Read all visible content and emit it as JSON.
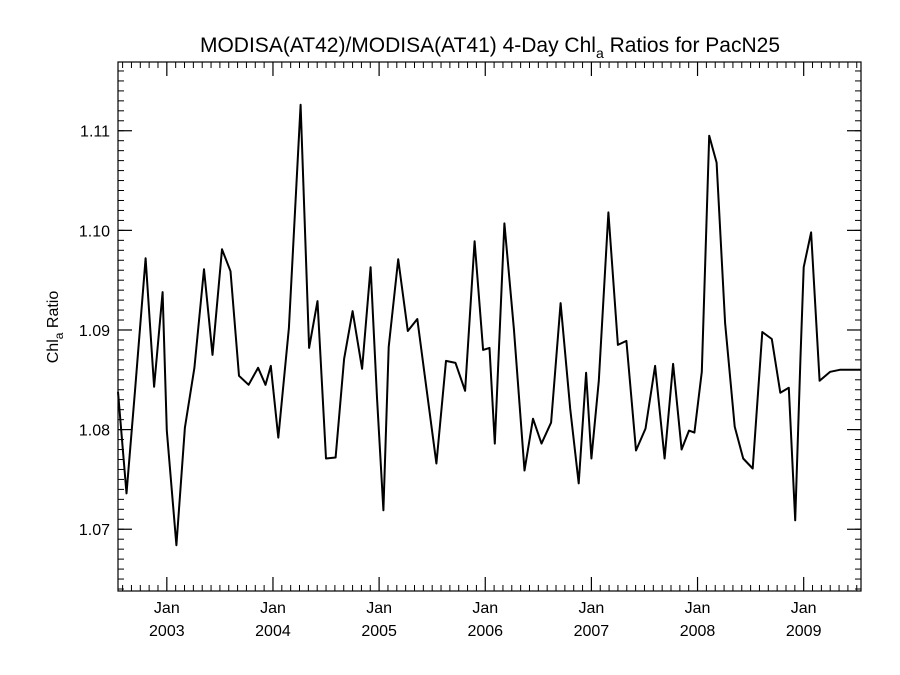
{
  "chart_data": {
    "type": "line",
    "title_main": "MODISA(AT42)/MODISA(AT41) 4-Day Chl",
    "title_sub": "a",
    "title_tail": " Ratios for PacN25",
    "ylabel_main": "Chl",
    "ylabel_sub": "a",
    "ylabel_tail": " Ratio",
    "xlim": [
      2002.54,
      2009.54
    ],
    "ylim": [
      1.0638,
      1.1169
    ],
    "yticks": [
      {
        "value": 1.07,
        "label": "1.07"
      },
      {
        "value": 1.08,
        "label": "1.08"
      },
      {
        "value": 1.09,
        "label": "1.09"
      },
      {
        "value": 1.1,
        "label": "1.10"
      },
      {
        "value": 1.11,
        "label": "1.11"
      }
    ],
    "xticks": [
      {
        "value": 2003.0,
        "month": "Jan",
        "year": "2003"
      },
      {
        "value": 2004.0,
        "month": "Jan",
        "year": "2004"
      },
      {
        "value": 2005.0,
        "month": "Jan",
        "year": "2005"
      },
      {
        "value": 2006.0,
        "month": "Jan",
        "year": "2006"
      },
      {
        "value": 2007.0,
        "month": "Jan",
        "year": "2007"
      },
      {
        "value": 2008.0,
        "month": "Jan",
        "year": "2008"
      },
      {
        "value": 2009.0,
        "month": "Jan",
        "year": "2009"
      }
    ],
    "series": [
      {
        "x": [
          2002.54,
          2002.62,
          2002.7,
          2002.8,
          2002.88,
          2002.96,
          2003.0,
          2003.09,
          2003.17,
          2003.26,
          2003.35,
          2003.43,
          2003.52,
          2003.6,
          2003.68,
          2003.77,
          2003.86,
          2003.93,
          2003.98,
          2004.05,
          2004.15,
          2004.26,
          2004.34,
          2004.42,
          2004.5,
          2004.59,
          2004.67,
          2004.75,
          2004.84,
          2004.92,
          2004.98,
          2005.04,
          2005.09,
          2005.18,
          2005.27,
          2005.36,
          2005.45,
          2005.54,
          2005.63,
          2005.72,
          2005.81,
          2005.9,
          2005.98,
          2006.04,
          2006.09,
          2006.18,
          2006.27,
          2006.37,
          2006.45,
          2006.53,
          2006.62,
          2006.71,
          2006.8,
          2006.88,
          2006.95,
          2007.0,
          2007.07,
          2007.16,
          2007.25,
          2007.33,
          2007.42,
          2007.51,
          2007.6,
          2007.69,
          2007.77,
          2007.85,
          2007.92,
          2007.97,
          2008.04,
          2008.11,
          2008.18,
          2008.26,
          2008.35,
          2008.43,
          2008.52,
          2008.61,
          2008.7,
          2008.78,
          2008.86,
          2008.92,
          2008.97,
          2009.0,
          2009.07,
          2009.15,
          2009.25,
          2009.34,
          2009.44,
          2009.54
        ],
        "y": [
          1.0838,
          1.0736,
          1.0839,
          1.0972,
          1.0843,
          1.0938,
          1.0799,
          1.0684,
          1.0802,
          1.0862,
          1.0961,
          1.0875,
          1.0981,
          1.0959,
          1.0854,
          1.0845,
          1.0862,
          1.0845,
          1.0864,
          1.0792,
          1.0902,
          1.1126,
          1.0882,
          1.0929,
          1.0771,
          1.0772,
          1.0871,
          1.0919,
          1.0861,
          1.0963,
          1.0832,
          1.0719,
          1.0883,
          1.0971,
          1.0899,
          1.0911,
          1.0838,
          1.0766,
          1.0869,
          1.0867,
          1.0839,
          1.0989,
          1.088,
          1.0882,
          1.0786,
          1.1007,
          1.0901,
          1.0759,
          1.0811,
          1.0786,
          1.0807,
          1.0927,
          1.0821,
          1.0746,
          1.0857,
          1.0771,
          1.0849,
          1.1018,
          1.0885,
          1.0889,
          1.0779,
          1.0801,
          1.0864,
          1.0771,
          1.0866,
          1.078,
          1.0799,
          1.0797,
          1.0858,
          1.1095,
          1.1068,
          1.0907,
          1.0803,
          1.0771,
          1.0761,
          1.0898,
          1.0891,
          1.0837,
          1.0842,
          1.0709,
          1.0873,
          1.0963,
          1.0998,
          1.0849,
          1.0858,
          1.086,
          1.086,
          1.086
        ]
      }
    ]
  }
}
